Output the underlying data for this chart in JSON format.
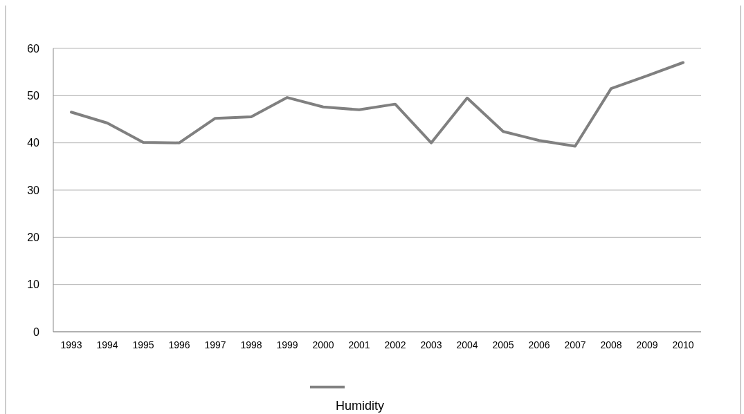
{
  "chart_data": {
    "type": "line",
    "categories": [
      "1993",
      "1994",
      "1995",
      "1996",
      "1997",
      "1998",
      "1999",
      "2000",
      "2001",
      "2002",
      "2003",
      "2004",
      "2005",
      "2006",
      "2007",
      "2008",
      "2009",
      "2010"
    ],
    "series": [
      {
        "name": "Humidity",
        "color": "#808080",
        "values": [
          46.5,
          44.2,
          40.1,
          40,
          45.2,
          45.5,
          49.6,
          47.6,
          47,
          48.2,
          40,
          49.5,
          42.4,
          40.5,
          39.3,
          51.5,
          54.2,
          57
        ]
      }
    ],
    "ylim": [
      0,
      60
    ],
    "yticks": [
      0,
      10,
      20,
      30,
      40,
      50,
      60
    ],
    "grid": "y",
    "legend": "bottom",
    "marker": "none",
    "line_style": "solid"
  }
}
